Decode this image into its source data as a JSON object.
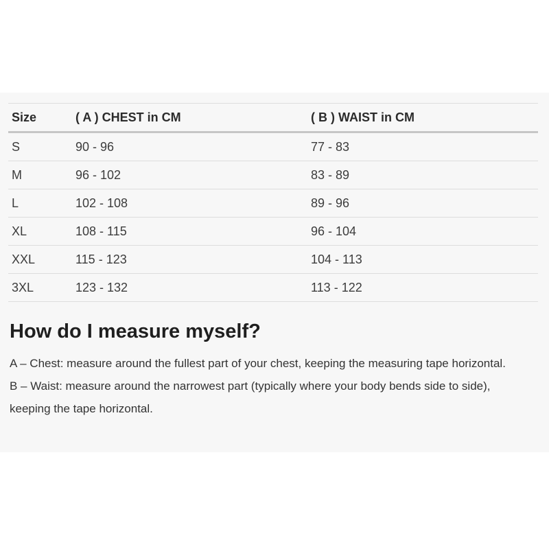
{
  "size_chart": {
    "columns": [
      {
        "key": "size",
        "label": "Size"
      },
      {
        "key": "chest",
        "label": "( A ) CHEST in CM"
      },
      {
        "key": "waist",
        "label": "( B ) WAIST in CM"
      }
    ],
    "rows": [
      {
        "size": "S",
        "chest": "90 - 96",
        "waist": "77 - 83"
      },
      {
        "size": "M",
        "chest": "96 - 102",
        "waist": "83 - 89"
      },
      {
        "size": "L",
        "chest": "102 - 108",
        "waist": "89 - 96"
      },
      {
        "size": "XL",
        "chest": "108 - 115",
        "waist": "96 - 104"
      },
      {
        "size": "XXL",
        "chest": "115 - 123",
        "waist": "104 - 113"
      },
      {
        "size": "3XL",
        "chest": "123 - 132",
        "waist": "113 - 122"
      }
    ]
  },
  "measure_guide": {
    "heading": "How do I measure myself?",
    "paragraphs": [
      "A – Chest: measure around the fullest part of your chest, keeping the measuring tape horizontal.",
      "B – Waist: measure around the narrowest part (typically where your body bends side to side), keeping the tape horizontal."
    ]
  },
  "colors": {
    "page_background": "#ffffff",
    "panel_background": "#f7f7f7",
    "row_border": "#dddddd",
    "header_border": "#c6c6c6",
    "table_text": "#3c3c3c",
    "heading_text": "#1f1f1f",
    "body_text": "#333333"
  }
}
